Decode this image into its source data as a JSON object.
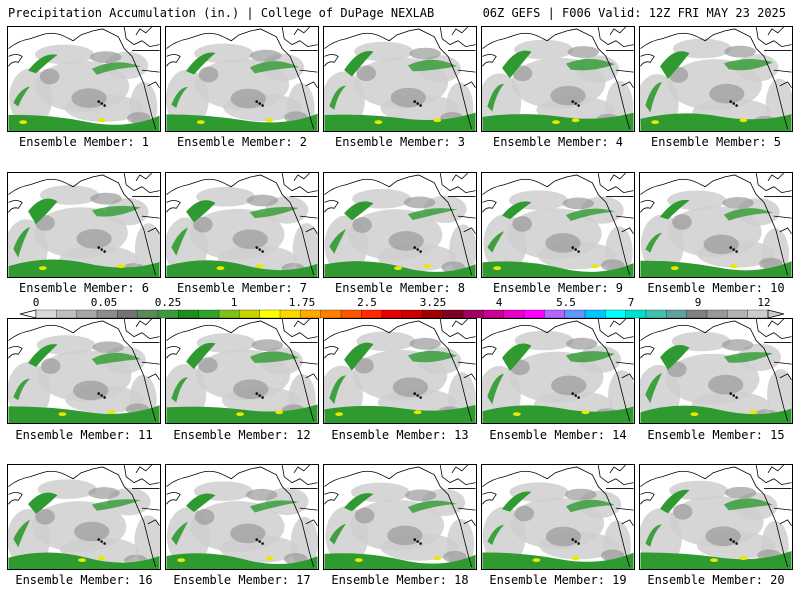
{
  "header": {
    "title": "Precipitation Accumulation (in.) | College of DuPage NEXLAB",
    "run_info": "06Z GEFS | F006 Valid: 12Z FRI MAY 23 2025"
  },
  "panels": [
    {
      "label": "Ensemble Member: 1"
    },
    {
      "label": "Ensemble Member: 2"
    },
    {
      "label": "Ensemble Member: 3"
    },
    {
      "label": "Ensemble Member: 4"
    },
    {
      "label": "Ensemble Member: 5"
    },
    {
      "label": "Ensemble Member: 6"
    },
    {
      "label": "Ensemble Member: 7"
    },
    {
      "label": "Ensemble Member: 8"
    },
    {
      "label": "Ensemble Member: 9"
    },
    {
      "label": "Ensemble Member: 10"
    },
    {
      "label": "Ensemble Member: 11"
    },
    {
      "label": "Ensemble Member: 12"
    },
    {
      "label": "Ensemble Member: 13"
    },
    {
      "label": "Ensemble Member: 14"
    },
    {
      "label": "Ensemble Member: 15"
    },
    {
      "label": "Ensemble Member: 16"
    },
    {
      "label": "Ensemble Member: 17"
    },
    {
      "label": "Ensemble Member: 18"
    },
    {
      "label": "Ensemble Member: 19"
    },
    {
      "label": "Ensemble Member: 20"
    }
  ],
  "colorbar": {
    "tick_labels": [
      "0",
      "0.05",
      "0.25",
      "1",
      "1.75",
      "2.5",
      "3.25",
      "4",
      "5.5",
      "7",
      "9",
      "12"
    ],
    "colors": [
      "#d9d9d9",
      "#bfbfbf",
      "#a6a6a6",
      "#8c8c8c",
      "#737373",
      "#5a8a5a",
      "#3c9c3c",
      "#1f8c1f",
      "#2ea62e",
      "#7cc21a",
      "#c8d400",
      "#ffff00",
      "#ffd700",
      "#ffaa00",
      "#ff8000",
      "#ff5500",
      "#ff2a00",
      "#e60000",
      "#c80000",
      "#a00000",
      "#800020",
      "#a00060",
      "#c80096",
      "#e600c8",
      "#ff00ff",
      "#b464ff",
      "#6496ff",
      "#00c8ff",
      "#00ffff",
      "#00e0d0",
      "#40c0b0",
      "#60a0a0",
      "#808080",
      "#999999",
      "#b3b3b3",
      "#cccccc"
    ]
  },
  "colors": {
    "land_outline": "#000000",
    "light_precip": "#cfcfcf",
    "moderate_precip": "#9a9a9a",
    "green_precip": "#2f9a2f",
    "yellow_precip": "#e8e800"
  }
}
